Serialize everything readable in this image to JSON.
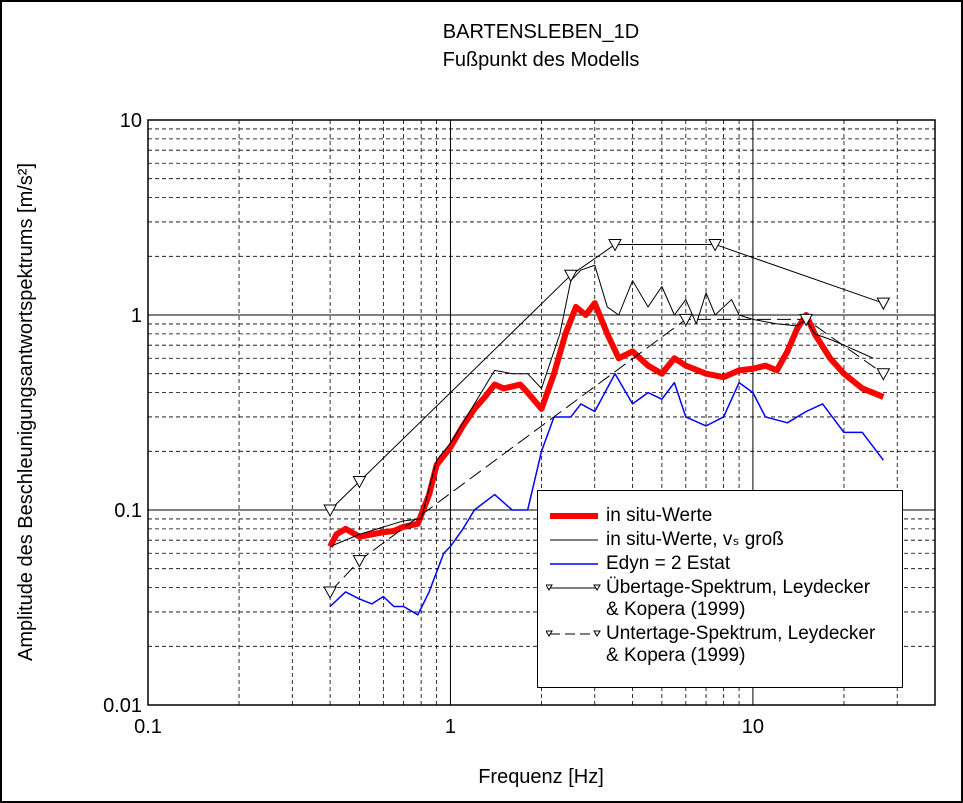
{
  "chart_data": {
    "type": "line",
    "title": "BARTENSLEBEN_1D",
    "subtitle": "Fußpunkt des Modells",
    "x_label": "Frequenz [Hz]",
    "y_label": "Amplitude des Beschleunigungsantwortspektrums [m/s²]",
    "xscale": "log",
    "yscale": "log",
    "xlim": [
      0.1,
      40
    ],
    "ylim": [
      0.01,
      10
    ],
    "xticks": [
      0.1,
      1,
      10
    ],
    "yticks": [
      0.01,
      0.1,
      1,
      10
    ],
    "xgrid_minor": [
      0.2,
      0.3,
      0.4,
      0.5,
      0.6,
      0.7,
      0.8,
      0.9,
      2,
      3,
      4,
      5,
      6,
      7,
      8,
      9,
      20,
      30,
      40
    ],
    "ygrid_minor": [
      0.02,
      0.03,
      0.04,
      0.05,
      0.06,
      0.07,
      0.08,
      0.09,
      0.2,
      0.3,
      0.4,
      0.5,
      0.6,
      0.7,
      0.8,
      0.9,
      2,
      3,
      4,
      5,
      6,
      7,
      8,
      9
    ],
    "grid": true,
    "legend": "lower right",
    "series": [
      {
        "name": "in situ-Werte",
        "color": "#ff0000",
        "width": 6,
        "x": [
          0.4,
          0.42,
          0.45,
          0.5,
          0.55,
          0.6,
          0.65,
          0.7,
          0.78,
          0.85,
          0.9,
          1.0,
          1.1,
          1.2,
          1.3,
          1.4,
          1.5,
          1.7,
          1.8,
          2.0,
          2.2,
          2.4,
          2.6,
          2.8,
          3.0,
          3.3,
          3.6,
          4.0,
          4.5,
          5,
          5.5,
          6,
          7,
          8,
          9,
          10,
          11,
          12,
          13,
          14,
          15,
          16,
          18,
          20,
          23,
          27
        ],
        "values": [
          0.065,
          0.075,
          0.08,
          0.073,
          0.075,
          0.077,
          0.078,
          0.082,
          0.085,
          0.12,
          0.17,
          0.21,
          0.27,
          0.33,
          0.38,
          0.44,
          0.42,
          0.44,
          0.4,
          0.33,
          0.5,
          0.8,
          1.1,
          1.0,
          1.15,
          0.8,
          0.6,
          0.65,
          0.55,
          0.5,
          0.6,
          0.55,
          0.5,
          0.48,
          0.52,
          0.53,
          0.55,
          0.52,
          0.65,
          0.85,
          1.0,
          0.8,
          0.6,
          0.5,
          0.42,
          0.38
        ]
      },
      {
        "name": "in situ-Werte, vₛ groß",
        "color": "#000000",
        "width": 1,
        "x": [
          0.4,
          0.5,
          0.7,
          0.8,
          0.9,
          1,
          1.2,
          1.4,
          1.6,
          1.8,
          2.0,
          2.3,
          2.5,
          2.7,
          3.0,
          3.3,
          3.6,
          4.0,
          4.5,
          5.0,
          5.5,
          6,
          6.5,
          7,
          7.5,
          8.5,
          9,
          10,
          12,
          14,
          15,
          16,
          18,
          20,
          25
        ],
        "values": [
          0.065,
          0.075,
          0.088,
          0.09,
          0.18,
          0.22,
          0.35,
          0.52,
          0.5,
          0.5,
          0.42,
          0.8,
          1.5,
          1.7,
          1.8,
          1.1,
          1.0,
          1.5,
          1.1,
          1.4,
          1.0,
          1.2,
          0.9,
          1.3,
          1.0,
          1.2,
          1.0,
          0.95,
          0.9,
          0.88,
          0.95,
          0.8,
          0.75,
          0.7,
          0.6
        ]
      },
      {
        "name": "Edyn = 2 Estat",
        "color": "#0000ff",
        "width": 1.5,
        "x": [
          0.4,
          0.45,
          0.5,
          0.55,
          0.6,
          0.65,
          0.7,
          0.78,
          0.85,
          0.95,
          1.0,
          1.1,
          1.2,
          1.3,
          1.4,
          1.6,
          1.8,
          2.0,
          2.2,
          2.5,
          2.7,
          3.0,
          3.5,
          4.0,
          4.5,
          5,
          5.5,
          6,
          7,
          8,
          9,
          10,
          11,
          13,
          15,
          17,
          20,
          23,
          27
        ],
        "values": [
          0.032,
          0.038,
          0.035,
          0.033,
          0.036,
          0.032,
          0.032,
          0.029,
          0.038,
          0.06,
          0.065,
          0.08,
          0.1,
          0.11,
          0.12,
          0.1,
          0.1,
          0.2,
          0.3,
          0.3,
          0.35,
          0.32,
          0.5,
          0.35,
          0.4,
          0.37,
          0.45,
          0.3,
          0.27,
          0.3,
          0.45,
          0.4,
          0.3,
          0.28,
          0.32,
          0.35,
          0.25,
          0.25,
          0.18
        ]
      },
      {
        "name": "Übertage-Spektrum, Leydecker & Kopera (1999)",
        "color": "#000000",
        "width": 1,
        "marker": "triangle",
        "x": [
          0.4,
          0.5,
          2.5,
          3.5,
          7.5,
          27
        ],
        "values": [
          0.1,
          0.14,
          1.6,
          2.3,
          2.3,
          1.15
        ]
      },
      {
        "name": "Untertage-Spektrum, Leydecker & Kopera (1999)",
        "color": "#000000",
        "width": 1,
        "marker": "triangle",
        "dash": true,
        "x": [
          0.4,
          0.5,
          6,
          15,
          27
        ],
        "values": [
          0.038,
          0.055,
          0.95,
          0.95,
          0.5
        ]
      }
    ]
  }
}
